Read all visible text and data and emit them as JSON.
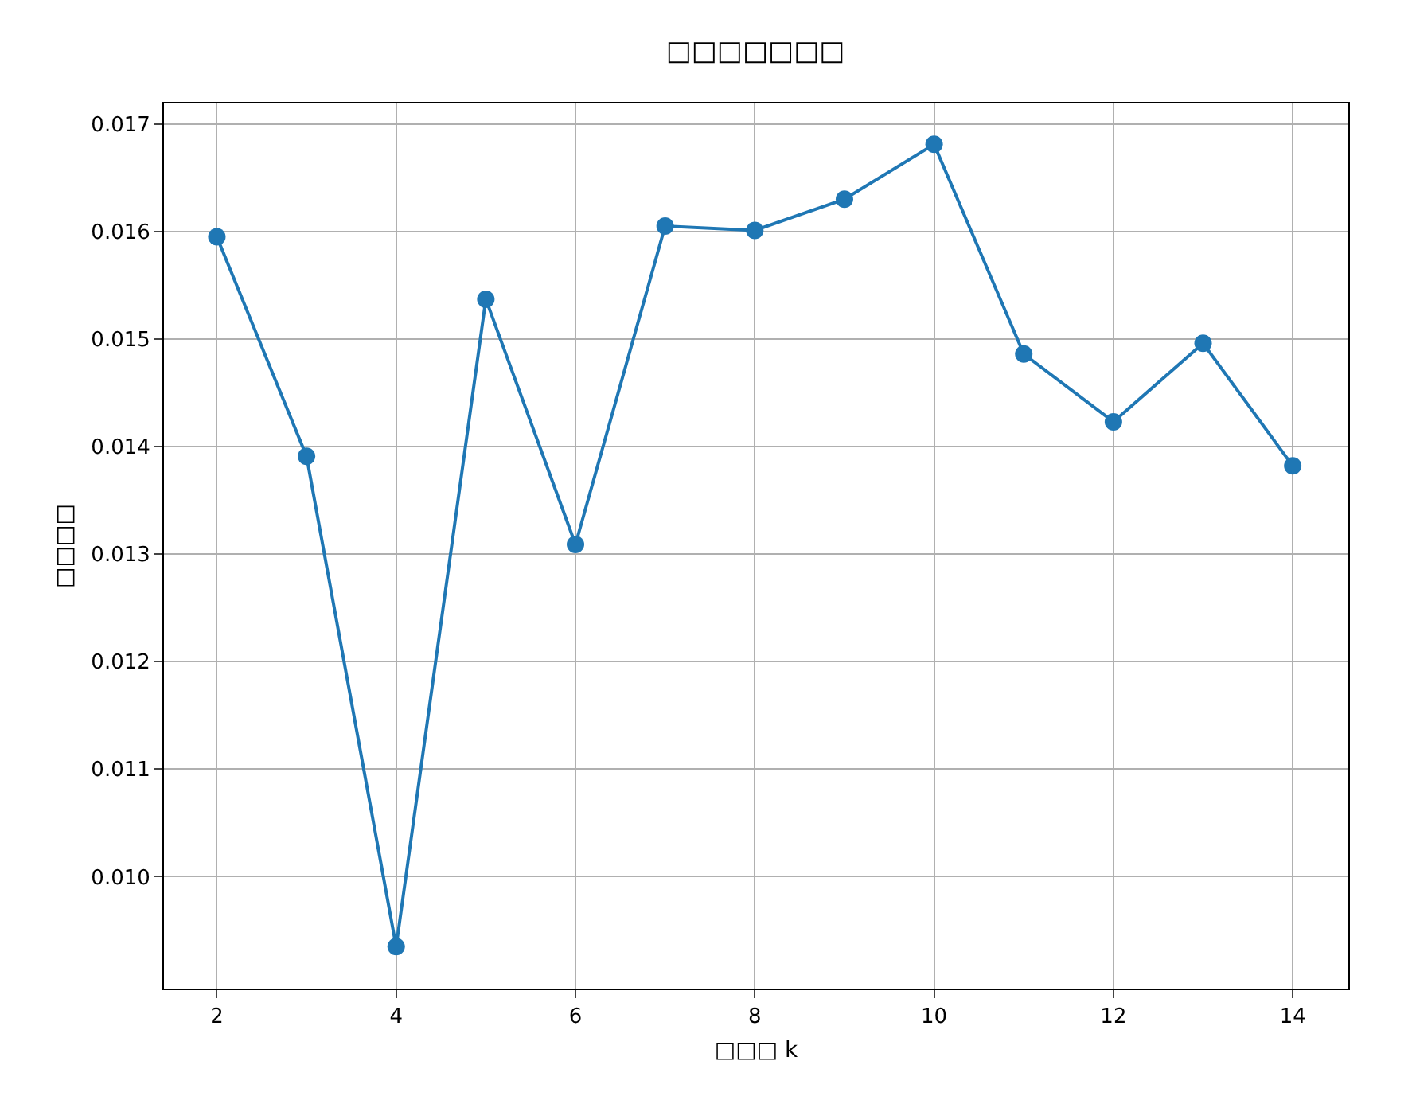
{
  "chart_data": {
    "type": "line",
    "title": "□□□□□□□",
    "xlabel": "□□□ k",
    "ylabel": "□□□□",
    "x": [
      2,
      3,
      4,
      5,
      6,
      7,
      8,
      9,
      10,
      11,
      12,
      13,
      14
    ],
    "series": [
      {
        "color": "#1f77b4",
        "values": [
          0.01595,
          0.01391,
          0.00935,
          0.01537,
          0.01309,
          0.01605,
          0.01601,
          0.0163,
          0.01681,
          0.01486,
          0.01423,
          0.01496,
          0.01382
        ]
      }
    ],
    "xlim": [
      1.41,
      14.62
    ],
    "xticks": [
      2,
      4,
      6,
      8,
      10,
      12,
      14
    ],
    "ylim": [
      0.00896,
      0.01719
    ],
    "yticks": [
      {
        "value": 0.01,
        "label": "0.010"
      },
      0.011,
      0.012,
      0.013,
      0.014,
      0.015,
      0.016,
      0.017
    ],
    "grid": true,
    "marker": "circle",
    "line_style": "solid"
  }
}
